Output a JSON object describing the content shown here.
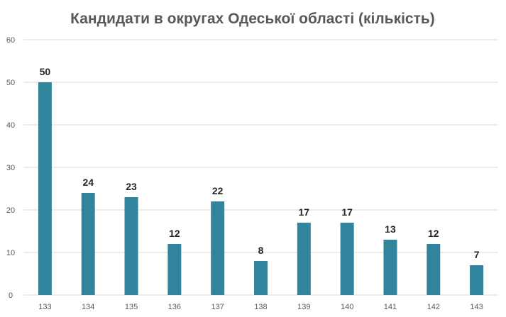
{
  "chart_data": {
    "type": "bar",
    "title": "Кандидати в округах Одеської області (кількість)",
    "xlabel": "",
    "ylabel": "",
    "categories": [
      "133",
      "134",
      "135",
      "136",
      "137",
      "138",
      "139",
      "140",
      "141",
      "142",
      "143"
    ],
    "values": [
      50,
      24,
      23,
      12,
      22,
      8,
      17,
      17,
      13,
      12,
      7
    ],
    "ylim": [
      0,
      60
    ],
    "yticks": [
      0,
      10,
      20,
      30,
      40,
      50,
      60
    ],
    "grid": true,
    "legend": "none",
    "data_labels": true,
    "bar_color": "#31849b"
  }
}
